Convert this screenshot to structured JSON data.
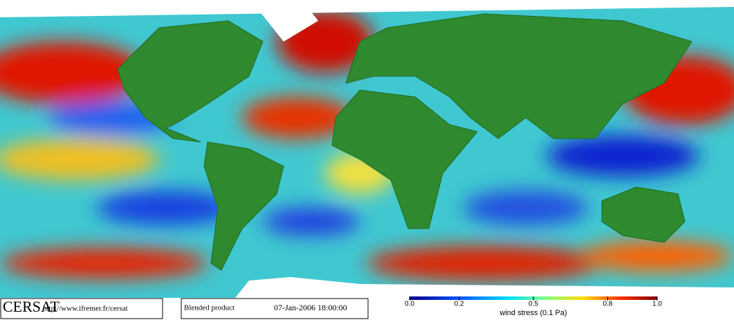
{
  "header": {
    "logo": "CERSAT",
    "url": "http://www.ifremer.fr/cersat",
    "product": "Blended product",
    "datetime": "07-Jan-2006 18:00:00"
  },
  "colorbar": {
    "label": "wind stress (0.1 Pa)",
    "lim": [
      0,
      1
    ],
    "ticks": [
      {
        "value": 0,
        "label": "0.0"
      },
      0.2,
      0.5,
      0.8,
      {
        "value": 1,
        "label": "1.0"
      }
    ]
  }
}
